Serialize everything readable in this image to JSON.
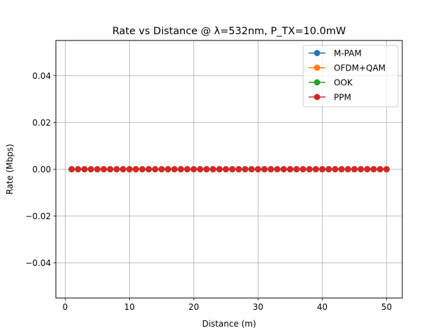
{
  "chart_data": {
    "type": "line",
    "title": "Rate vs Distance @ λ=532nm, P_TX=10.0mW",
    "xlabel": "Distance (m)",
    "ylabel": "Rate (Mbps)",
    "xlim": [
      -1.45,
      52.45
    ],
    "ylim": [
      -0.055,
      0.055
    ],
    "xticks": [
      0,
      10,
      20,
      30,
      40,
      50
    ],
    "xtick_labels": [
      "0",
      "10",
      "20",
      "30",
      "40",
      "50"
    ],
    "yticks": [
      -0.04,
      -0.02,
      0.0,
      0.02,
      0.04
    ],
    "ytick_labels": [
      "−0.04",
      "−0.02",
      "0.00",
      "0.02",
      "0.04"
    ],
    "grid": true,
    "legend_position": "top-right",
    "x": [
      1,
      2,
      3,
      4,
      5,
      6,
      7,
      8,
      9,
      10,
      11,
      12,
      13,
      14,
      15,
      16,
      17,
      18,
      19,
      20,
      21,
      22,
      23,
      24,
      25,
      26,
      27,
      28,
      29,
      30,
      31,
      32,
      33,
      34,
      35,
      36,
      37,
      38,
      39,
      40,
      41,
      42,
      43,
      44,
      45,
      46,
      47,
      48,
      49,
      50
    ],
    "series": [
      {
        "name": "M-PAM",
        "color": "#1f77b4",
        "values": [
          0,
          0,
          0,
          0,
          0,
          0,
          0,
          0,
          0,
          0,
          0,
          0,
          0,
          0,
          0,
          0,
          0,
          0,
          0,
          0,
          0,
          0,
          0,
          0,
          0,
          0,
          0,
          0,
          0,
          0,
          0,
          0,
          0,
          0,
          0,
          0,
          0,
          0,
          0,
          0,
          0,
          0,
          0,
          0,
          0,
          0,
          0,
          0,
          0,
          0
        ]
      },
      {
        "name": "OFDM+QAM",
        "color": "#ff7f0e",
        "values": [
          0,
          0,
          0,
          0,
          0,
          0,
          0,
          0,
          0,
          0,
          0,
          0,
          0,
          0,
          0,
          0,
          0,
          0,
          0,
          0,
          0,
          0,
          0,
          0,
          0,
          0,
          0,
          0,
          0,
          0,
          0,
          0,
          0,
          0,
          0,
          0,
          0,
          0,
          0,
          0,
          0,
          0,
          0,
          0,
          0,
          0,
          0,
          0,
          0,
          0
        ]
      },
      {
        "name": "OOK",
        "color": "#2ca02c",
        "values": [
          0,
          0,
          0,
          0,
          0,
          0,
          0,
          0,
          0,
          0,
          0,
          0,
          0,
          0,
          0,
          0,
          0,
          0,
          0,
          0,
          0,
          0,
          0,
          0,
          0,
          0,
          0,
          0,
          0,
          0,
          0,
          0,
          0,
          0,
          0,
          0,
          0,
          0,
          0,
          0,
          0,
          0,
          0,
          0,
          0,
          0,
          0,
          0,
          0,
          0
        ]
      },
      {
        "name": "PPM",
        "color": "#d62728",
        "values": [
          0,
          0,
          0,
          0,
          0,
          0,
          0,
          0,
          0,
          0,
          0,
          0,
          0,
          0,
          0,
          0,
          0,
          0,
          0,
          0,
          0,
          0,
          0,
          0,
          0,
          0,
          0,
          0,
          0,
          0,
          0,
          0,
          0,
          0,
          0,
          0,
          0,
          0,
          0,
          0,
          0,
          0,
          0,
          0,
          0,
          0,
          0,
          0,
          0,
          0
        ]
      }
    ]
  }
}
